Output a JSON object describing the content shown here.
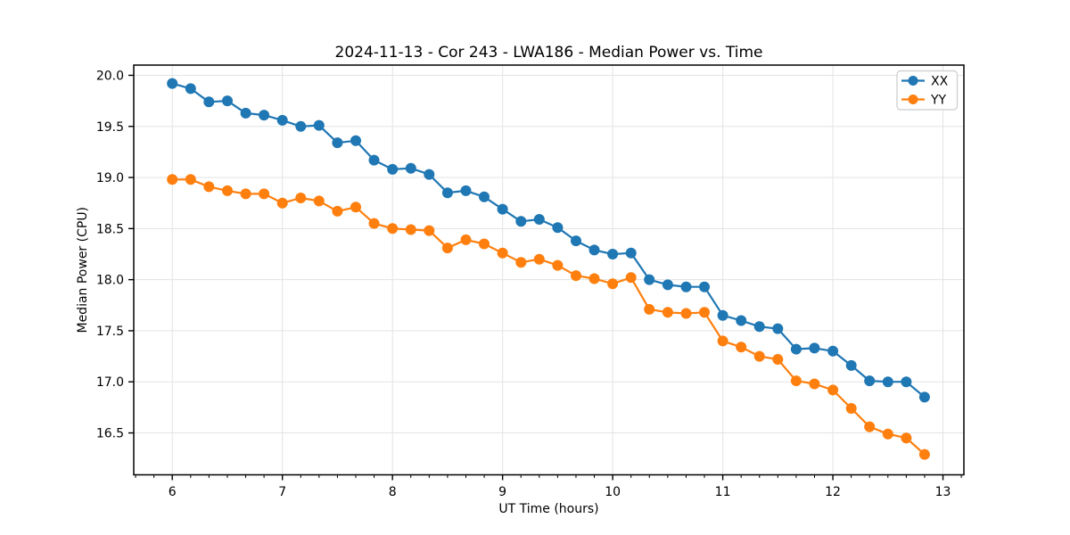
{
  "figure": {
    "title": "2024-11-13 - Cor 243 - LWA186 - Median Power vs. Time",
    "background": "#ffffff"
  },
  "chart_data": {
    "type": "line",
    "title": "2024-11-13 - Cor 243 - LWA186 - Median Power vs. Time",
    "xlabel": "UT Time (hours)",
    "ylabel": "Median Power (CPU)",
    "x": [
      6.0,
      6.167,
      6.333,
      6.5,
      6.667,
      6.833,
      7.0,
      7.167,
      7.333,
      7.5,
      7.667,
      7.833,
      8.0,
      8.167,
      8.333,
      8.5,
      8.667,
      8.833,
      9.0,
      9.167,
      9.333,
      9.5,
      9.667,
      9.833,
      10.0,
      10.167,
      10.333,
      10.5,
      10.667,
      10.833,
      11.0,
      11.167,
      11.333,
      11.5,
      11.667,
      11.833,
      12.0,
      12.167,
      12.333,
      12.5,
      12.667,
      12.833
    ],
    "series": [
      {
        "name": "XX",
        "color": "#1f77b4",
        "values": [
          19.92,
          19.87,
          19.74,
          19.75,
          19.63,
          19.61,
          19.56,
          19.5,
          19.51,
          19.34,
          19.36,
          19.17,
          19.08,
          19.09,
          19.03,
          18.85,
          18.87,
          18.81,
          18.69,
          18.57,
          18.59,
          18.51,
          18.38,
          18.29,
          18.25,
          18.26,
          18.0,
          17.95,
          17.93,
          17.93,
          17.65,
          17.6,
          17.54,
          17.52,
          17.32,
          17.33,
          17.3,
          17.16,
          17.01,
          17.0,
          17.0,
          16.85
        ]
      },
      {
        "name": "YY",
        "color": "#ff7f0e",
        "values": [
          18.98,
          18.98,
          18.91,
          18.87,
          18.84,
          18.84,
          18.75,
          18.8,
          18.77,
          18.67,
          18.71,
          18.55,
          18.5,
          18.49,
          18.48,
          18.31,
          18.39,
          18.35,
          18.26,
          18.17,
          18.2,
          18.14,
          18.04,
          18.01,
          17.96,
          18.02,
          17.71,
          17.68,
          17.67,
          17.68,
          17.4,
          17.34,
          17.25,
          17.22,
          17.01,
          16.98,
          16.92,
          16.74,
          16.56,
          16.49,
          16.45,
          16.29
        ]
      }
    ],
    "xlim": [
      5.65,
      13.19
    ],
    "ylim": [
      16.09,
      20.1
    ],
    "xticks": [
      6,
      7,
      8,
      9,
      10,
      11,
      12,
      13
    ],
    "yticks": [
      16.5,
      17.0,
      17.5,
      18.0,
      18.5,
      19.0,
      19.5,
      20.0
    ],
    "x_minor_step_hours": 0.1667,
    "grid": true,
    "grid_color": "#e3e3e3",
    "legend": {
      "position": "upper right",
      "entries": [
        "XX",
        "YY"
      ]
    },
    "marker": "circle"
  }
}
